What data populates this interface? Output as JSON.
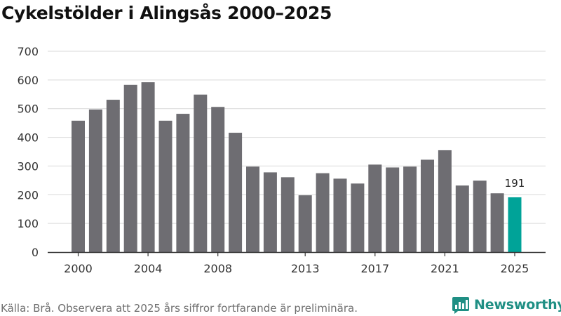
{
  "title": "Cykelstölder i Alingsås 2000–2025",
  "source_note": "Källa: Brå. Observera att 2025 års siffror fortfarande är preliminära.",
  "brand": {
    "name": "Newsworthy",
    "icon": "newsworthy-logo-icon"
  },
  "colors": {
    "bar": "#6e6d72",
    "highlight": "#00a398",
    "grid": "#d9d9d9",
    "axis": "#333333",
    "brand": "#1f8f84"
  },
  "chart_data": {
    "type": "bar",
    "title": "Cykelstölder i Alingsås 2000–2025",
    "xlabel": "",
    "ylabel": "",
    "ylim": [
      0,
      700
    ],
    "yticks": [
      0,
      100,
      200,
      300,
      400,
      500,
      600,
      700
    ],
    "categories": [
      "2000",
      "2001",
      "2002",
      "2003",
      "2004",
      "2005",
      "2006",
      "2007",
      "2008",
      "2009",
      "2010",
      "2011",
      "2012",
      "2013",
      "2014",
      "2015",
      "2016",
      "2017",
      "2018",
      "2019",
      "2020",
      "2021",
      "2022",
      "2023",
      "2024",
      "2025"
    ],
    "values": [
      458,
      497,
      531,
      583,
      592,
      458,
      482,
      549,
      506,
      416,
      298,
      278,
      261,
      198,
      275,
      256,
      239,
      305,
      295,
      298,
      322,
      355,
      232,
      249,
      205,
      191
    ],
    "x_tick_labels": [
      "2000",
      "2004",
      "2008",
      "2013",
      "2017",
      "2021",
      "2025"
    ],
    "highlight": {
      "category": "2025",
      "label": "191"
    },
    "grid": true
  }
}
